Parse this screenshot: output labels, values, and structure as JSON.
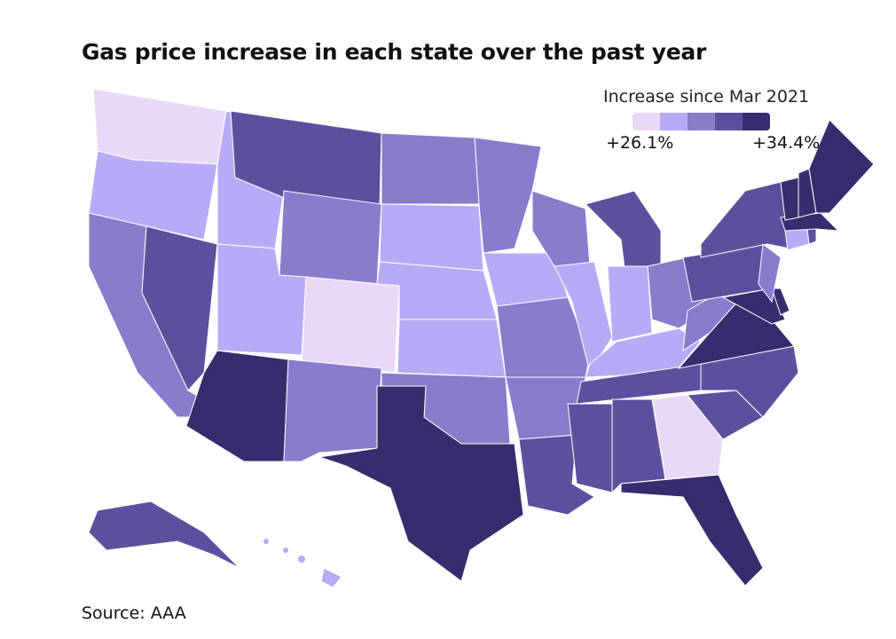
{
  "title": "Gas price increase in each state over the past year",
  "source": "Source: AAA",
  "legend": {
    "title": "Increase since Mar 2021",
    "min_label": "+26.1%",
    "max_label": "+34.4%",
    "colors": [
      "#ead8f9",
      "#b9aaf8",
      "#8a7bcd",
      "#5e4f9e",
      "#372c6e"
    ]
  },
  "chart_data": {
    "type": "choropleth",
    "scale_bins": 5,
    "states": {
      "WA": 0,
      "OR": 1,
      "CA": 2,
      "ID": 1,
      "NV": 3,
      "MT": 3,
      "WY": 2,
      "UT": 1,
      "CO": 0,
      "AZ": 4,
      "NM": 2,
      "ND": 2,
      "SD": 1,
      "NE": 1,
      "KS": 1,
      "OK": 2,
      "TX": 4,
      "MN": 2,
      "IA": 1,
      "MO": 2,
      "AR": 2,
      "LA": 3,
      "WI": 2,
      "IL": 1,
      "MI": 3,
      "IN": 1,
      "OH": 2,
      "KY": 1,
      "TN": 3,
      "MS": 3,
      "AL": 3,
      "GA": 0,
      "FL": 4,
      "SC": 3,
      "NC": 3,
      "VA": 4,
      "WV": 2,
      "MD": 4,
      "DE": 4,
      "PA": 3,
      "NY": 3,
      "NJ": 2,
      "CT": 1,
      "RI": 3,
      "MA": 4,
      "VT": 4,
      "NH": 4,
      "ME": 4,
      "AK": 3,
      "HI": 1
    }
  }
}
